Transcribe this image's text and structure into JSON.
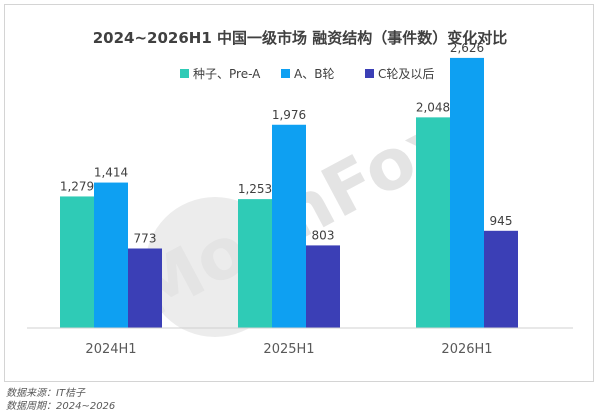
{
  "chart_data": {
    "type": "bar",
    "title": "2024~2026H1 中国一级市场 融资结构（事件数）变化对比",
    "categories": [
      "2024H1",
      "2025H1",
      "2026H1"
    ],
    "series": [
      {
        "name": "种子、Pre-A",
        "values": [
          1279,
          1253,
          2048
        ],
        "labels": [
          "1,279",
          "1,253",
          "2,048"
        ],
        "color": "#2fcbb6"
      },
      {
        "name": "A、B轮",
        "values": [
          1414,
          1976,
          2626
        ],
        "labels": [
          "1,414",
          "1,976",
          "2,626"
        ],
        "color": "#0ea0f2"
      },
      {
        "name": "C轮及以后",
        "values": [
          773,
          803,
          945
        ],
        "labels": [
          "773",
          "803",
          "945"
        ],
        "color": "#3b3fb6"
      }
    ],
    "ylim": [
      0,
      2800
    ],
    "grid": false,
    "legend": "top-center",
    "xlabel": "",
    "ylabel": ""
  },
  "watermark": {
    "text": "MoonFox",
    "color": "#e4e4e4"
  },
  "footer": {
    "source": "数据来源：IT桔子",
    "period": "数据周期：2024~2026"
  }
}
